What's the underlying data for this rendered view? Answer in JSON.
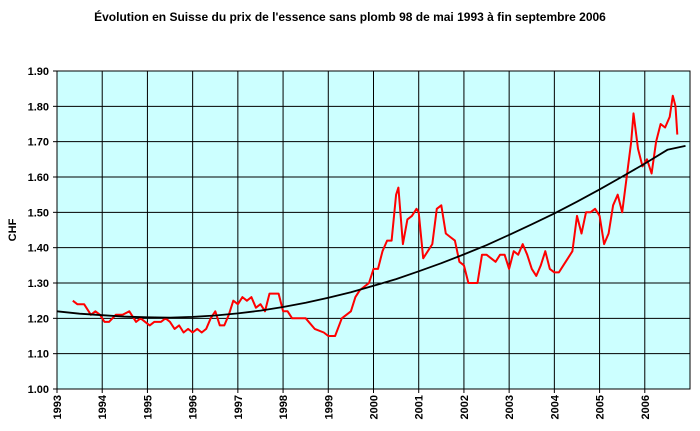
{
  "chart_data": {
    "type": "line",
    "title": "Évolution en Suisse du prix de l'essence sans plomb 98 de mai 1993 à fin septembre 2006",
    "xlabel": "",
    "ylabel": "CHF",
    "xlim": [
      1993,
      2007
    ],
    "ylim": [
      1.0,
      1.9
    ],
    "x_ticks": [
      "1993",
      "1994",
      "1995",
      "1996",
      "1997",
      "1998",
      "1999",
      "2000",
      "2001",
      "2002",
      "2003",
      "2004",
      "2005",
      "2006"
    ],
    "y_ticks": [
      "1.00",
      "1.10",
      "1.20",
      "1.30",
      "1.40",
      "1.50",
      "1.60",
      "1.70",
      "1.80",
      "1.90"
    ],
    "grid": true,
    "plot_background": "#ccffff",
    "series": [
      {
        "color": "#ff0000",
        "x": [
          1993.35,
          1993.45,
          1993.6,
          1993.75,
          1993.85,
          1993.95,
          1994.05,
          1994.15,
          1994.3,
          1994.45,
          1994.6,
          1994.75,
          1994.85,
          1994.95,
          1995.05,
          1995.15,
          1995.3,
          1995.4,
          1995.5,
          1995.6,
          1995.7,
          1995.8,
          1995.9,
          1996.0,
          1996.1,
          1996.2,
          1996.3,
          1996.4,
          1996.5,
          1996.6,
          1996.7,
          1996.8,
          1996.9,
          1997.0,
          1997.1,
          1997.2,
          1997.3,
          1997.4,
          1997.5,
          1997.6,
          1997.7,
          1997.8,
          1997.9,
          1998.0,
          1998.1,
          1998.2,
          1998.3,
          1998.5,
          1998.7,
          1998.9,
          1999.0,
          1999.15,
          1999.3,
          1999.4,
          1999.5,
          1999.6,
          1999.7,
          1999.8,
          1999.9,
          2000.0,
          2000.1,
          2000.2,
          2000.3,
          2000.4,
          2000.5,
          2000.55,
          2000.65,
          2000.75,
          2000.85,
          2000.95,
          2001.0,
          2001.1,
          2001.2,
          2001.3,
          2001.4,
          2001.5,
          2001.6,
          2001.7,
          2001.8,
          2001.9,
          2002.0,
          2002.1,
          2002.2,
          2002.3,
          2002.4,
          2002.5,
          2002.6,
          2002.7,
          2002.8,
          2002.9,
          2003.0,
          2003.1,
          2003.2,
          2003.3,
          2003.4,
          2003.5,
          2003.6,
          2003.7,
          2003.8,
          2003.9,
          2004.0,
          2004.1,
          2004.2,
          2004.3,
          2004.4,
          2004.5,
          2004.6,
          2004.7,
          2004.8,
          2004.9,
          2005.0,
          2005.1,
          2005.2,
          2005.3,
          2005.4,
          2005.5,
          2005.6,
          2005.7,
          2005.75,
          2005.85,
          2005.95,
          2006.05,
          2006.15,
          2006.25,
          2006.35,
          2006.45,
          2006.55,
          2006.62,
          2006.68,
          2006.72
        ],
        "y": [
          1.25,
          1.24,
          1.24,
          1.21,
          1.22,
          1.21,
          1.19,
          1.19,
          1.21,
          1.21,
          1.22,
          1.19,
          1.2,
          1.19,
          1.18,
          1.19,
          1.19,
          1.2,
          1.19,
          1.17,
          1.18,
          1.16,
          1.17,
          1.16,
          1.17,
          1.16,
          1.17,
          1.2,
          1.22,
          1.18,
          1.18,
          1.21,
          1.25,
          1.24,
          1.26,
          1.25,
          1.26,
          1.23,
          1.24,
          1.22,
          1.27,
          1.27,
          1.27,
          1.22,
          1.22,
          1.2,
          1.2,
          1.2,
          1.17,
          1.16,
          1.15,
          1.15,
          1.2,
          1.21,
          1.22,
          1.26,
          1.28,
          1.29,
          1.3,
          1.34,
          1.34,
          1.39,
          1.42,
          1.42,
          1.55,
          1.57,
          1.41,
          1.48,
          1.49,
          1.51,
          1.5,
          1.37,
          1.39,
          1.41,
          1.51,
          1.52,
          1.44,
          1.43,
          1.42,
          1.36,
          1.35,
          1.3,
          1.3,
          1.3,
          1.38,
          1.38,
          1.37,
          1.36,
          1.38,
          1.38,
          1.34,
          1.39,
          1.38,
          1.41,
          1.38,
          1.34,
          1.32,
          1.35,
          1.39,
          1.34,
          1.33,
          1.33,
          1.35,
          1.37,
          1.39,
          1.49,
          1.44,
          1.5,
          1.5,
          1.51,
          1.49,
          1.41,
          1.44,
          1.52,
          1.55,
          1.5,
          1.6,
          1.7,
          1.78,
          1.68,
          1.63,
          1.65,
          1.61,
          1.7,
          1.75,
          1.74,
          1.77,
          1.83,
          1.8,
          1.72
        ]
      },
      {
        "color": "#000000",
        "x": [
          1993.0,
          1993.5,
          1994.0,
          1994.5,
          1995.0,
          1995.5,
          1996.0,
          1996.5,
          1997.0,
          1997.5,
          1998.0,
          1998.5,
          1999.0,
          1999.5,
          2000.0,
          2000.5,
          2001.0,
          2001.5,
          2002.0,
          2002.5,
          2003.0,
          2003.5,
          2004.0,
          2004.5,
          2005.0,
          2005.5,
          2006.0,
          2006.5,
          2006.9
        ],
        "y": [
          1.22,
          1.213,
          1.209,
          1.205,
          1.203,
          1.202,
          1.204,
          1.208,
          1.214,
          1.222,
          1.232,
          1.244,
          1.258,
          1.274,
          1.292,
          1.311,
          1.333,
          1.356,
          1.381,
          1.407,
          1.436,
          1.466,
          1.497,
          1.53,
          1.565,
          1.601,
          1.638,
          1.677,
          1.688
        ]
      }
    ]
  }
}
